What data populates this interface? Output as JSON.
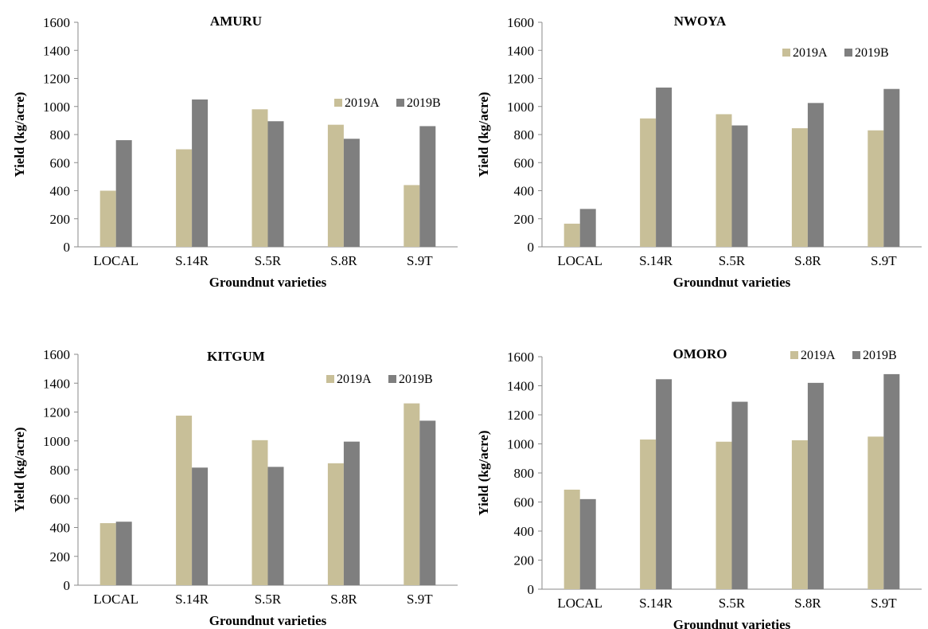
{
  "colors": {
    "2019A": "#c8bf98",
    "2019B": "#7f7f7f",
    "axis": "#8a8a8a"
  },
  "chart_data": [
    {
      "type": "bar",
      "title": "AMURU",
      "xlabel": "Groundnut varieties",
      "ylabel": "Yield (kg/acre)",
      "ylim": [
        0,
        1600
      ],
      "yticks": [
        "0",
        "200",
        "400",
        "600",
        "800",
        "1000",
        "1200",
        "1400",
        "1600"
      ],
      "categories": [
        "LOCAL",
        "S.14R",
        "S.5R",
        "S.8R",
        "S.9T"
      ],
      "series": [
        {
          "name": "2019A",
          "values": [
            400,
            695,
            980,
            870,
            440
          ]
        },
        {
          "name": "2019B",
          "values": [
            760,
            1050,
            895,
            770,
            860
          ]
        }
      ],
      "legend": "top-right",
      "grid": false
    },
    {
      "type": "bar",
      "title": "NWOYA",
      "xlabel": "Groundnut varieties",
      "ylabel": "Yield (kg/acre)",
      "ylim": [
        0,
        1600
      ],
      "yticks": [
        "0",
        "200",
        "400",
        "600",
        "800",
        "1000",
        "1200",
        "1400",
        "1600"
      ],
      "categories": [
        "LOCAL",
        "S.14R",
        "S.5R",
        "S.8R",
        "S.9T"
      ],
      "series": [
        {
          "name": "2019A",
          "values": [
            165,
            915,
            945,
            845,
            830
          ]
        },
        {
          "name": "2019B",
          "values": [
            270,
            1135,
            865,
            1025,
            1125
          ]
        }
      ],
      "legend": "top-right",
      "grid": false
    },
    {
      "type": "bar",
      "title": "KITGUM",
      "xlabel": "Groundnut varieties",
      "ylabel": "Yield (kg/acre)",
      "ylim": [
        0,
        1600
      ],
      "yticks": [
        "0",
        "200",
        "400",
        "600",
        "800",
        "1000",
        "1200",
        "1400",
        "1600"
      ],
      "categories": [
        "LOCAL",
        "S.14R",
        "S.5R",
        "S.8R",
        "S.9T"
      ],
      "series": [
        {
          "name": "2019A",
          "values": [
            430,
            1175,
            1005,
            845,
            1260
          ]
        },
        {
          "name": "2019B",
          "values": [
            440,
            815,
            820,
            995,
            1140
          ]
        }
      ],
      "legend": "top-right",
      "grid": false
    },
    {
      "type": "bar",
      "title": "OMORO",
      "xlabel": "Groundnut varieties",
      "ylabel": "Yield (kg/acre)",
      "ylim": [
        0,
        1600
      ],
      "yticks": [
        "0",
        "200",
        "400",
        "600",
        "800",
        "1000",
        "1200",
        "1400",
        "1600"
      ],
      "categories": [
        "LOCAL",
        "S.14R",
        "S.5R",
        "S.8R",
        "S.9T"
      ],
      "series": [
        {
          "name": "2019A",
          "values": [
            685,
            1030,
            1015,
            1025,
            1050
          ]
        },
        {
          "name": "2019B",
          "values": [
            620,
            1445,
            1290,
            1420,
            1480
          ]
        }
      ],
      "legend": "top-right",
      "grid": false
    }
  ]
}
